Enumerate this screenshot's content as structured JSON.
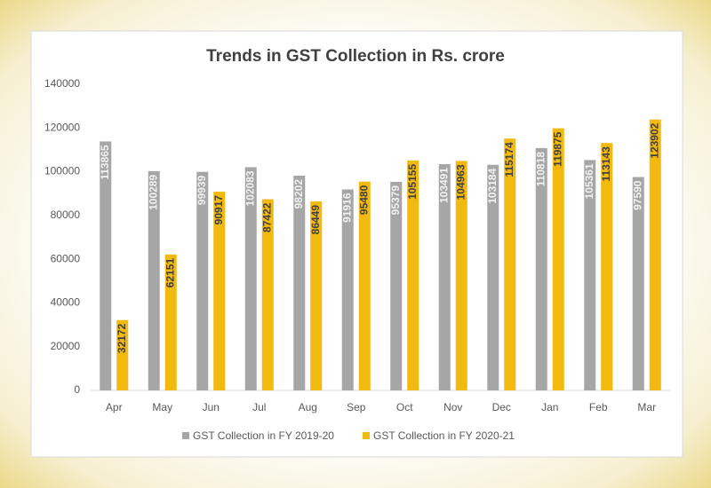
{
  "chart_data": {
    "type": "bar",
    "title": "Trends in GST Collection in Rs. crore",
    "categories": [
      "Apr",
      "May",
      "Jun",
      "Jul",
      "Aug",
      "Sep",
      "Oct",
      "Nov",
      "Dec",
      "Jan",
      "Feb",
      "Mar"
    ],
    "series": [
      {
        "name": "GST Collection in FY 2019-20",
        "color": "#a6a6a6",
        "values": [
          113865,
          100289,
          99939,
          102083,
          98202,
          91916,
          95379,
          103491,
          103184,
          110818,
          105361,
          97590
        ]
      },
      {
        "name": "GST Collection in FY 2020-21",
        "color": "#f2b90f",
        "values": [
          32172,
          62151,
          90917,
          87422,
          86449,
          95480,
          105155,
          104963,
          115174,
          119875,
          113143,
          123902
        ]
      }
    ],
    "ylim": [
      0,
      140000
    ],
    "yticks": [
      0,
      20000,
      40000,
      60000,
      80000,
      100000,
      120000,
      140000
    ],
    "grid": false,
    "legend": "bottom"
  }
}
